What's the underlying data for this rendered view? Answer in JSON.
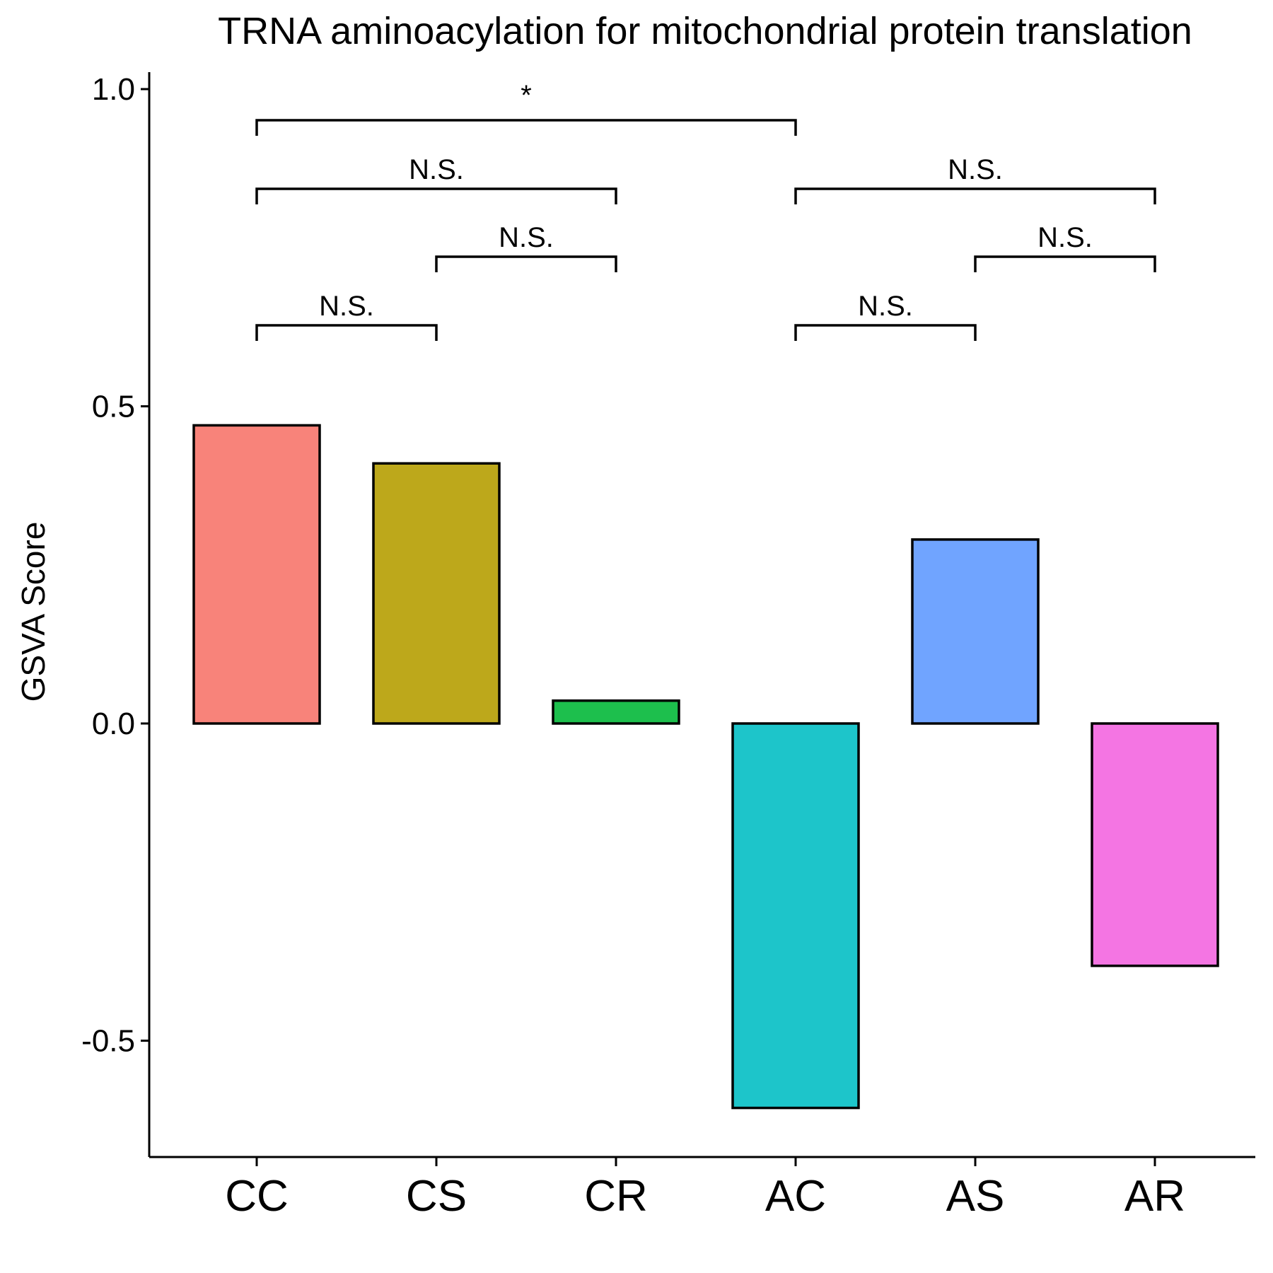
{
  "chart_data": {
    "type": "bar",
    "title": "TRNA aminoacylation for mitochondrial protein translation",
    "xlabel": "",
    "ylabel": "GSVA Score",
    "categories": [
      "CC",
      "CS",
      "CR",
      "AC",
      "AS",
      "AR"
    ],
    "values": [
      0.47,
      0.41,
      0.036,
      -0.606,
      0.29,
      -0.382
    ],
    "colors": [
      "#F8837A",
      "#BDA81B",
      "#1DBF4D",
      "#1DC5CA",
      "#70A4FF",
      "#F475E3"
    ],
    "ylim": [
      -0.68,
      1.02
    ],
    "yticks": [
      -0.5,
      0.0,
      0.5,
      1.0
    ],
    "ytick_labels": [
      "-0.5",
      "0.0",
      "0.5",
      "1.0"
    ],
    "grid": false,
    "legend": "none",
    "comparisons": [
      {
        "from": "CC",
        "to": "AC",
        "label": "*",
        "level": 1
      },
      {
        "from": "CC",
        "to": "CR",
        "label": "N.S.",
        "level": 2
      },
      {
        "from": "AC",
        "to": "AR",
        "label": "N.S.",
        "level": 2
      },
      {
        "from": "CS",
        "to": "CR",
        "label": "N.S.",
        "level": 3
      },
      {
        "from": "AS",
        "to": "AR",
        "label": "N.S.",
        "level": 3
      },
      {
        "from": "CC",
        "to": "CS",
        "label": "N.S.",
        "level": 4
      },
      {
        "from": "AC",
        "to": "AS",
        "label": "N.S.",
        "level": 4
      }
    ]
  }
}
